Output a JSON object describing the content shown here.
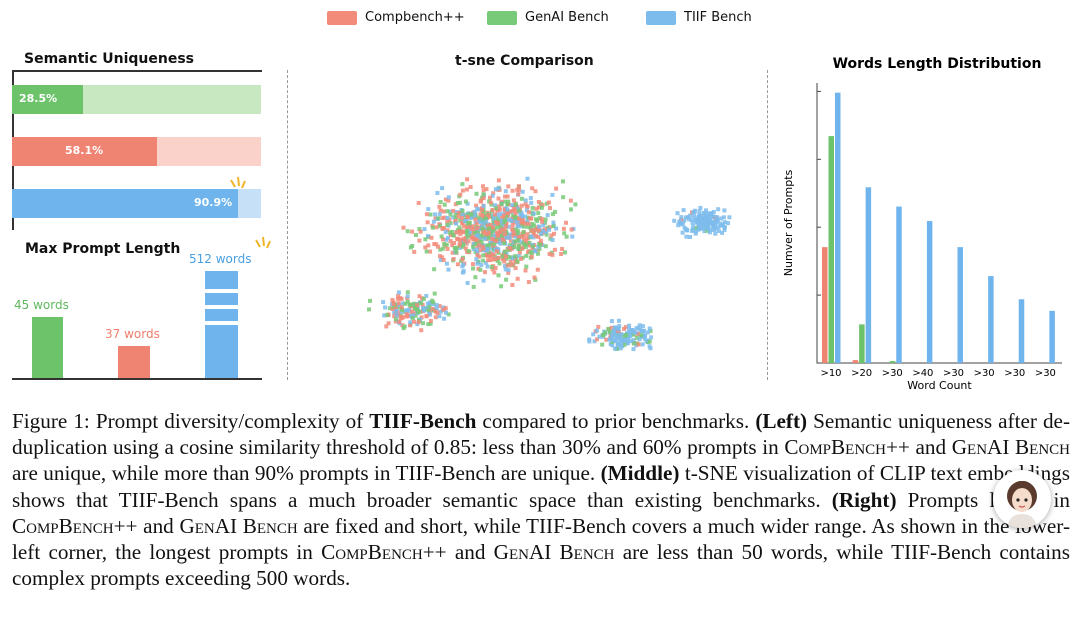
{
  "legend": {
    "items": [
      {
        "label": "Compbench++",
        "color": "#f28b7a"
      },
      {
        "label": "GenAI Bench",
        "color": "#78c978"
      },
      {
        "label": "TIIF Bench",
        "color": "#7cbcec"
      }
    ]
  },
  "semantic_uniqueness": {
    "title": "Semantic Uniqueness",
    "bars": [
      {
        "series": "GenAI Bench",
        "label": "28.5%",
        "value": 28.5,
        "color": "#6cc36a",
        "track": "#c7e8c0"
      },
      {
        "series": "Compbench++",
        "label": "58.1%",
        "value": 58.1,
        "color": "#f08473",
        "track": "#fbd2c9"
      },
      {
        "series": "TIIF Bench",
        "label": "90.9%",
        "value": 90.9,
        "color": "#6fb4ec",
        "track": "#c6e1f7"
      }
    ]
  },
  "max_prompt_length": {
    "title": "Max Prompt Length",
    "columns": [
      {
        "series": "GenAI Bench",
        "label": "45 words",
        "value": 45,
        "color": "#6cc36a"
      },
      {
        "series": "Compbench++",
        "label": "37 words",
        "value": 37,
        "color": "#f08473"
      },
      {
        "series": "TIIF Bench",
        "label": "512 words",
        "value": 512,
        "color": "#6fb4ec"
      }
    ]
  },
  "tsne": {
    "title": "t-sne Comparison"
  },
  "chart_data": [
    {
      "type": "bar",
      "title": "Semantic Uniqueness",
      "categories": [
        "GenAI Bench",
        "Compbench++",
        "TIIF Bench"
      ],
      "values": [
        28.5,
        58.1,
        90.9
      ],
      "ylim": [
        0,
        100
      ]
    },
    {
      "type": "bar",
      "title": "Max Prompt Length",
      "categories": [
        "GenAI Bench",
        "Compbench++",
        "TIIF Bench"
      ],
      "values": [
        45,
        37,
        512
      ]
    },
    {
      "type": "scatter",
      "title": "t-sne Comparison",
      "series": [
        {
          "name": "Compbench++",
          "color": "#f28b7a"
        },
        {
          "name": "GenAI Bench",
          "color": "#78c978"
        },
        {
          "name": "TIIF Bench",
          "color": "#7cbcec"
        }
      ]
    },
    {
      "type": "bar",
      "title": "Words Length Distribution",
      "xlabel": "Word Count",
      "ylabel": "Numver of Prompts",
      "categories": [
        ">10",
        ">20",
        ">30",
        ">40",
        ">30",
        ">30",
        ">30",
        ">30"
      ],
      "series": [
        {
          "name": "Compbench++",
          "color": "#f08473",
          "values": [
            120,
            3,
            0,
            0,
            0,
            0,
            0,
            0
          ]
        },
        {
          "name": "GenAI Bench",
          "color": "#6cc36a",
          "values": [
            235,
            40,
            2,
            0,
            0,
            0,
            0,
            0
          ]
        },
        {
          "name": "TIIF Bench",
          "color": "#6fb4ec",
          "values": [
            280,
            182,
            162,
            147,
            120,
            90,
            66,
            54
          ]
        }
      ],
      "ylim": [
        0,
        290
      ],
      "grid": false
    }
  ],
  "caption": {
    "p1": "Figure 1: Prompt diversity/complexity of ",
    "b1": "TIIF-Bench",
    "p2": " compared to prior benchmarks. ",
    "b2": "(Left)",
    "p3": " Semantic uniqueness after de-duplication using a cosine similarity threshold of 0.85: less than 30% and 60% prompts in ",
    "sc1": "CompBench++",
    "p4": " and ",
    "sc2": "GenAI Bench",
    "p5": " are unique, while more than 90% prompts in TIIF-Bench are unique. ",
    "b3": "(Middle)",
    "p6": " t-SNE visualization of CLIP text embeddings shows that TIIF-Bench spans a much broader semantic space than existing benchmarks. ",
    "b4": "(Right)",
    "p7": " Prompts length in ",
    "sc3": "CompBench++",
    "p8": " and ",
    "sc4": "GenAI Bench",
    "p9": " are fixed and short, while TIIF-Bench covers a much wider range. As shown in the lower-left corner, the longest prompts in ",
    "sc5": "CompBench++",
    "p10": " and ",
    "sc6": "GenAI Bench",
    "p11": " are less than 50 words, while TIIF-Bench contains complex prompts exceeding 500 words."
  }
}
